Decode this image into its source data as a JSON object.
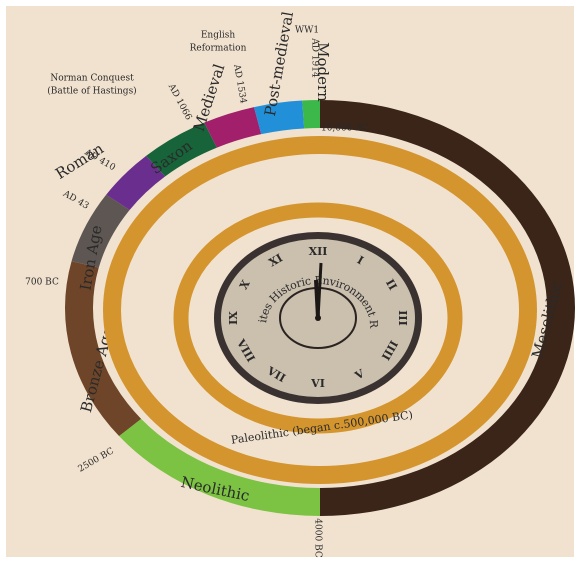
{
  "periods": [
    {
      "name": "Mesolithic",
      "color": "#3b2418",
      "text_color": "#e8d2b0"
    },
    {
      "name": "Neolithic",
      "color": "#7cc243",
      "text_color": "#f4f0dc"
    },
    {
      "name": "Bronze Age",
      "color": "#6e4528",
      "text_color": "#ecd6b8"
    },
    {
      "name": "Iron Age",
      "color": "#5d5652",
      "text_color": "#ecdcc8"
    },
    {
      "name": "Roman",
      "color": "#6a2f8e",
      "text_color": "#6a2f8e"
    },
    {
      "name": "Saxon",
      "color": "#17643a",
      "text_color": "#f2ecd8"
    },
    {
      "name": "Medieval",
      "color": "#a21f6c",
      "text_color": "#a21f6c"
    },
    {
      "name": "Post-medieval",
      "color": "#2290d8",
      "text_color": "#2290d8"
    },
    {
      "name": "Modern",
      "color": "#3cb84a",
      "text_color": "#3cb84a"
    }
  ],
  "paleolithic": {
    "name": "Paleolithic (began c.500,000 BC)",
    "color": "#d4952f"
  },
  "dates": [
    "10,000 BC",
    "4000 BC",
    "2500 BC",
    "700 BC",
    "AD 43",
    "AD 410",
    "AD 1066",
    "AD 1534",
    "AD 1914"
  ],
  "events": [
    {
      "lines": [
        "Norman Conquest",
        "(Battle of Hastings)"
      ]
    },
    {
      "lines": [
        "English",
        "Reformation"
      ]
    },
    {
      "lines": [
        "WW1"
      ]
    }
  ],
  "clock": {
    "title": "Kent Sites Historic Environment Record",
    "numerals": [
      "XII",
      "I",
      "II",
      "III",
      "IIII",
      "V",
      "VI",
      "VII",
      "VIII",
      "IX",
      "X",
      "XI"
    ]
  }
}
